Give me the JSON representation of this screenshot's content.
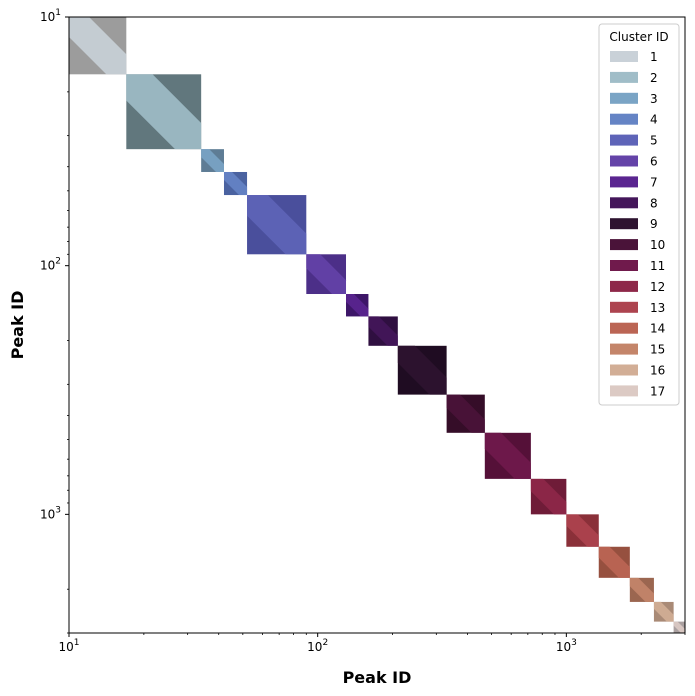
{
  "chart_data": {
    "type": "heatmap",
    "xlabel": "Peak ID",
    "ylabel": "Peak ID",
    "x_scale": "log",
    "y_scale": "log",
    "y_inverted": true,
    "xlim": [
      10,
      3000
    ],
    "ylim": [
      3000,
      10
    ],
    "x_ticks": [
      {
        "value": 10,
        "base": "10",
        "exp": "1"
      },
      {
        "value": 100,
        "base": "10",
        "exp": "2"
      },
      {
        "value": 1000,
        "base": "10",
        "exp": "3"
      }
    ],
    "y_ticks": [
      {
        "value": 10,
        "base": "10",
        "exp": "1"
      },
      {
        "value": 100,
        "base": "10",
        "exp": "2"
      },
      {
        "value": 1000,
        "base": "10",
        "exp": "3"
      }
    ],
    "legend": {
      "title": "Cluster ID",
      "placement": "top-right"
    },
    "clusters": [
      {
        "id": "1",
        "start": 10,
        "end": 17,
        "color": "#c9d1d8",
        "shade": "#9c9c9c"
      },
      {
        "id": "2",
        "start": 17,
        "end": 34,
        "color": "#a0bdc8",
        "shade": "#61777d"
      },
      {
        "id": "3",
        "start": 34,
        "end": 42,
        "color": "#7aa4c5",
        "shade": "#5e7c95"
      },
      {
        "id": "4",
        "start": 42,
        "end": 52,
        "color": "#6584c5",
        "shade": "#4a62a0"
      },
      {
        "id": "5",
        "start": 52,
        "end": 90,
        "color": "#5e64b8",
        "shade": "#4a4f9c"
      },
      {
        "id": "6",
        "start": 90,
        "end": 130,
        "color": "#6443a8",
        "shade": "#4c2f88"
      },
      {
        "id": "7",
        "start": 130,
        "end": 160,
        "color": "#5a2590",
        "shade": "#3d1668"
      },
      {
        "id": "8",
        "start": 160,
        "end": 210,
        "color": "#44165a",
        "shade": "#2f0f40"
      },
      {
        "id": "9",
        "start": 210,
        "end": 330,
        "color": "#2e1330",
        "shade": "#1f0c22"
      },
      {
        "id": "10",
        "start": 330,
        "end": 470,
        "color": "#4a1339",
        "shade": "#350d28"
      },
      {
        "id": "11",
        "start": 470,
        "end": 720,
        "color": "#701a4c",
        "shade": "#551038"
      },
      {
        "id": "12",
        "start": 720,
        "end": 1000,
        "color": "#8e2849",
        "shade": "#6f1c38"
      },
      {
        "id": "13",
        "start": 1000,
        "end": 1350,
        "color": "#ad444f",
        "shade": "#8a3039"
      },
      {
        "id": "14",
        "start": 1350,
        "end": 1800,
        "color": "#bb6554",
        "shade": "#96503f"
      },
      {
        "id": "15",
        "start": 1800,
        "end": 2250,
        "color": "#c4856a",
        "shade": "#9b6650"
      },
      {
        "id": "16",
        "start": 2250,
        "end": 2700,
        "color": "#d2ae96",
        "shade": "#a98a76"
      },
      {
        "id": "17",
        "start": 2700,
        "end": 3000,
        "color": "#dccac4",
        "shade": "#aaa0a0"
      }
    ]
  }
}
